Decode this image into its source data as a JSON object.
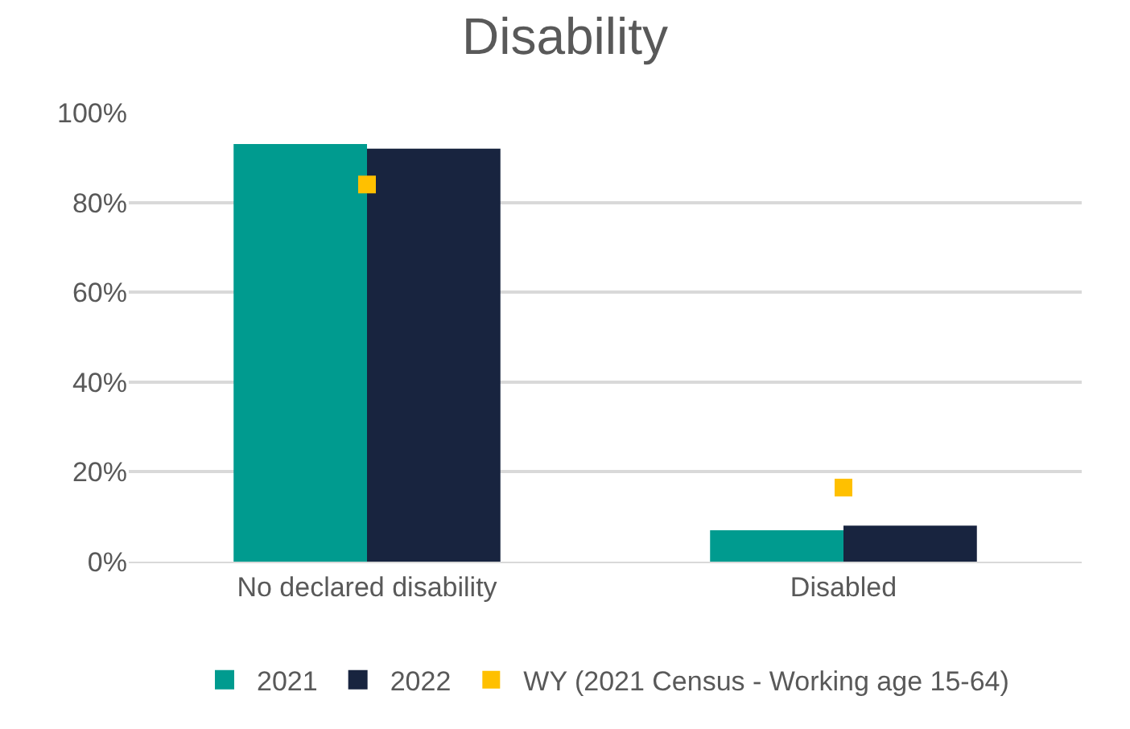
{
  "chart_data": {
    "type": "bar",
    "title": "Disability",
    "categories": [
      "No declared disability",
      "Disabled"
    ],
    "series": [
      {
        "name": "2021",
        "color": "#009b8f",
        "values": [
          93,
          7
        ]
      },
      {
        "name": "2022",
        "color": "#18243f",
        "values": [
          92,
          8
        ]
      },
      {
        "name": "WY (2021 Census - Working age 15-64)",
        "type": "scatter",
        "marker": "square",
        "color": "#ffc000",
        "values": [
          84,
          16.5
        ]
      }
    ],
    "ylim": [
      0,
      100
    ],
    "yticks": [
      {
        "value": 0,
        "label": "0%"
      },
      {
        "value": 20,
        "label": "20%"
      },
      {
        "value": 40,
        "label": "40%"
      },
      {
        "value": 60,
        "label": "60%"
      },
      {
        "value": 80,
        "label": "80%"
      },
      {
        "value": 100,
        "label": "100%"
      }
    ],
    "grid": "y",
    "legend": "bottom"
  }
}
